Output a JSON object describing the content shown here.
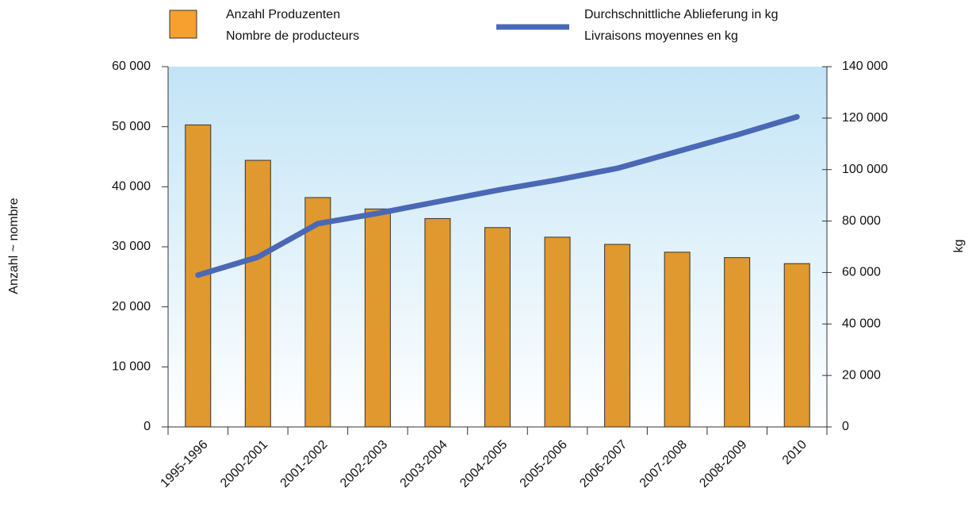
{
  "chart_data": {
    "type": "bar_line",
    "categories": [
      "1995-1996",
      "2000-2001",
      "2001-2002",
      "2002-2003",
      "2003-2004",
      "2004-2005",
      "2005-2006",
      "2006-2007",
      "2007-2008",
      "2008-2009",
      "2010"
    ],
    "series": [
      {
        "name": [
          "Anzahl Produzenten",
          "Nombre de producteurs"
        ],
        "color": "#e0992e",
        "type": "bar",
        "values": [
          50300,
          44400,
          38200,
          36300,
          34700,
          33200,
          31600,
          30400,
          29100,
          28200,
          27200
        ]
      },
      {
        "name": [
          "Durchschnittliche Ablieferung in kg",
          "Livraisons moyennes en kg"
        ],
        "color": "#4a68b5",
        "type": "line",
        "axis": "y2",
        "values": [
          59000,
          66000,
          79000,
          83000,
          87500,
          92000,
          96000,
          100500,
          107000,
          113500,
          120500
        ]
      }
    ],
    "ylabel": "Anzahl  ~  nombre",
    "y2label": "kg",
    "ylim": [
      0,
      60000
    ],
    "yticks": [
      0,
      {
        "value": 10000,
        "label": "10 000"
      },
      {
        "value": 20000,
        "label": "20 000"
      },
      {
        "value": 30000,
        "label": "30 000"
      },
      {
        "value": 40000,
        "label": "40 000"
      },
      {
        "value": 50000,
        "label": "50 000"
      },
      {
        "value": 60000,
        "label": "60 000"
      }
    ],
    "y2lim": [
      0,
      140000
    ],
    "y2ticks": [
      0,
      {
        "value": 20000,
        "label": "20 000"
      },
      {
        "value": 40000,
        "label": "40 000"
      },
      {
        "value": 60000,
        "label": "60 000"
      },
      {
        "value": 80000,
        "label": "80 000"
      },
      {
        "value": 100000,
        "label": "100 000"
      },
      {
        "value": 120000,
        "label": "120 000"
      },
      {
        "value": 140000,
        "label": "140 000"
      }
    ]
  }
}
